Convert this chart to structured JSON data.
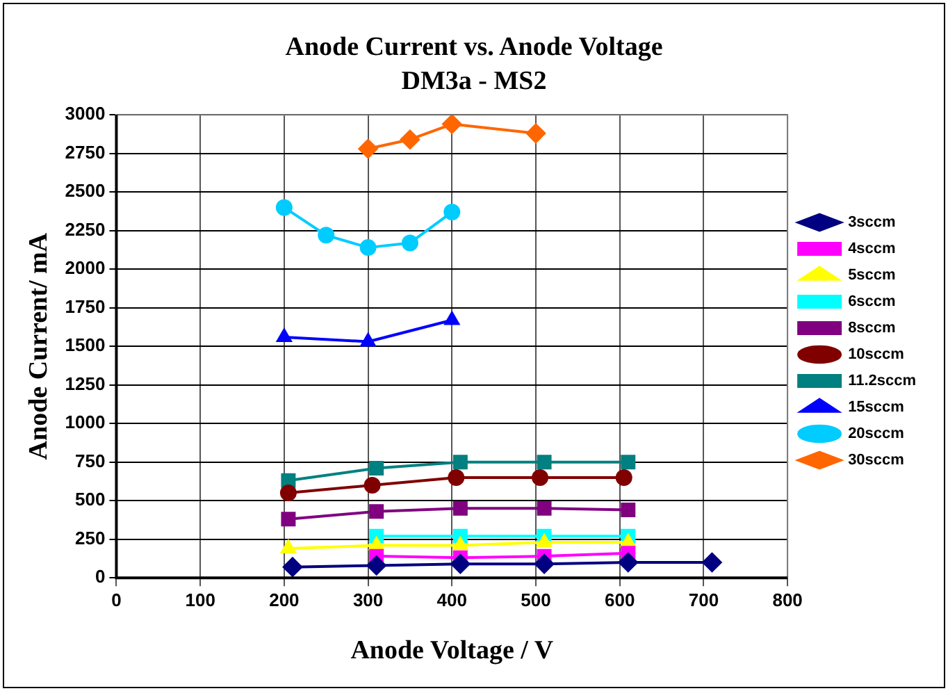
{
  "chart_data": {
    "type": "line",
    "title": "Anode Current vs. Anode Voltage",
    "subtitle": "DM3a - MS2",
    "xlabel": "Anode Voltage / V",
    "ylabel": "Anode Current/ mA",
    "xlim": [
      0,
      800
    ],
    "xticks": [
      0,
      100,
      200,
      300,
      400,
      500,
      600,
      700,
      800
    ],
    "ylim": [
      0,
      3000
    ],
    "yticks": [
      0,
      250,
      500,
      750,
      1000,
      1250,
      1500,
      1750,
      2000,
      2250,
      2500,
      2750,
      3000
    ],
    "grid": true,
    "legend": "right",
    "line_style": "solid",
    "series": [
      {
        "name": "3sccm",
        "color": "#000080",
        "marker": "diamond",
        "x": [
          210,
          310,
          410,
          510,
          610,
          710
        ],
        "values": [
          70,
          80,
          90,
          90,
          100,
          100
        ]
      },
      {
        "name": "4sccm",
        "color": "#ff00ff",
        "marker": "square",
        "x": [
          310,
          410,
          510,
          610
        ],
        "values": [
          140,
          130,
          140,
          160
        ]
      },
      {
        "name": "5sccm",
        "color": "#ffff00",
        "marker": "triangle",
        "x": [
          205,
          310,
          410,
          510,
          610
        ],
        "values": [
          190,
          210,
          210,
          230,
          230
        ]
      },
      {
        "name": "6sccm",
        "color": "#00ffff",
        "marker": "square",
        "x": [
          310,
          410,
          510,
          610
        ],
        "values": [
          270,
          270,
          270,
          270
        ]
      },
      {
        "name": "8sccm",
        "color": "#800080",
        "marker": "square",
        "x": [
          205,
          310,
          410,
          510,
          610
        ],
        "values": [
          380,
          430,
          450,
          450,
          440
        ]
      },
      {
        "name": "10sccm",
        "color": "#800000",
        "marker": "circle",
        "x": [
          205,
          305,
          405,
          505,
          605
        ],
        "values": [
          550,
          600,
          650,
          650,
          650
        ]
      },
      {
        "name": "11.2sccm",
        "color": "#008080",
        "marker": "square",
        "x": [
          205,
          310,
          410,
          510,
          610
        ],
        "values": [
          630,
          710,
          750,
          750,
          750
        ]
      },
      {
        "name": "15sccm",
        "color": "#0000ff",
        "marker": "triangle",
        "x": [
          200,
          300,
          400
        ],
        "values": [
          1560,
          1530,
          1670
        ]
      },
      {
        "name": "20sccm",
        "color": "#00ccff",
        "marker": "circle",
        "x": [
          200,
          250,
          300,
          350,
          400
        ],
        "values": [
          2400,
          2220,
          2140,
          2170,
          2370
        ]
      },
      {
        "name": "30sccm",
        "color": "#ff6600",
        "marker": "diamond",
        "x": [
          300,
          350,
          400,
          500
        ],
        "values": [
          2780,
          2840,
          2940,
          2880
        ]
      }
    ]
  }
}
